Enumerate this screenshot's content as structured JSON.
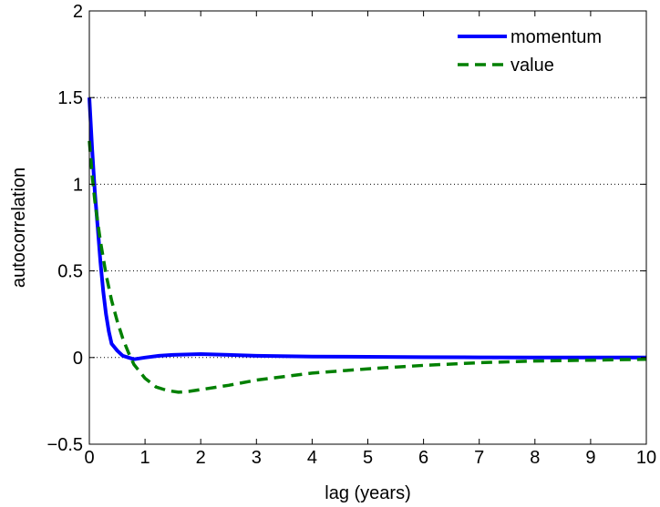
{
  "chart_data": {
    "type": "line",
    "title": "",
    "xlabel": "lag (years)",
    "ylabel": "autocorrelation",
    "xlim": [
      0,
      10
    ],
    "ylim": [
      -0.5,
      2
    ],
    "xticks": [
      0,
      1,
      2,
      3,
      4,
      5,
      6,
      7,
      8,
      9,
      10
    ],
    "xtick_labels": [
      "0",
      "1",
      "2",
      "3",
      "4",
      "5",
      "6",
      "7",
      "8",
      "9",
      "10"
    ],
    "yticks": [
      -0.5,
      0,
      0.5,
      1,
      1.5,
      2
    ],
    "ytick_labels": [
      "−0.5",
      "0",
      "0.5",
      "1",
      "1.5",
      "2"
    ],
    "grid": "horizontal dotted",
    "legend_position": "top-right",
    "series": [
      {
        "name": "momentum",
        "color": "#0000ff",
        "style": "solid",
        "x": [
          0,
          0.05,
          0.1,
          0.15,
          0.2,
          0.25,
          0.3,
          0.35,
          0.4,
          0.45,
          0.5,
          0.6,
          0.7,
          0.8,
          1.0,
          1.25,
          1.5,
          2.0,
          2.5,
          3.0,
          4.0,
          5.0,
          6.0,
          7.0,
          8.0,
          9.0,
          10.0
        ],
        "y": [
          1.5,
          1.2,
          0.95,
          0.75,
          0.55,
          0.38,
          0.25,
          0.15,
          0.08,
          0.06,
          0.04,
          0.01,
          0.0,
          -0.01,
          0.0,
          0.01,
          0.015,
          0.02,
          0.015,
          0.01,
          0.006,
          0.004,
          0.002,
          0.001,
          0.0,
          0.0,
          0.0
        ]
      },
      {
        "name": "value",
        "color": "#008000",
        "style": "dashed",
        "x": [
          0,
          0.05,
          0.1,
          0.15,
          0.2,
          0.3,
          0.4,
          0.5,
          0.6,
          0.7,
          0.8,
          1.0,
          1.2,
          1.4,
          1.6,
          1.8,
          2.0,
          2.5,
          3.0,
          4.0,
          5.0,
          6.0,
          7.0,
          8.0,
          9.0,
          10.0
        ],
        "y": [
          1.25,
          1.05,
          0.9,
          0.78,
          0.67,
          0.48,
          0.33,
          0.21,
          0.11,
          0.03,
          -0.04,
          -0.12,
          -0.17,
          -0.19,
          -0.2,
          -0.195,
          -0.185,
          -0.16,
          -0.13,
          -0.09,
          -0.065,
          -0.045,
          -0.03,
          -0.02,
          -0.015,
          -0.01
        ]
      }
    ]
  }
}
